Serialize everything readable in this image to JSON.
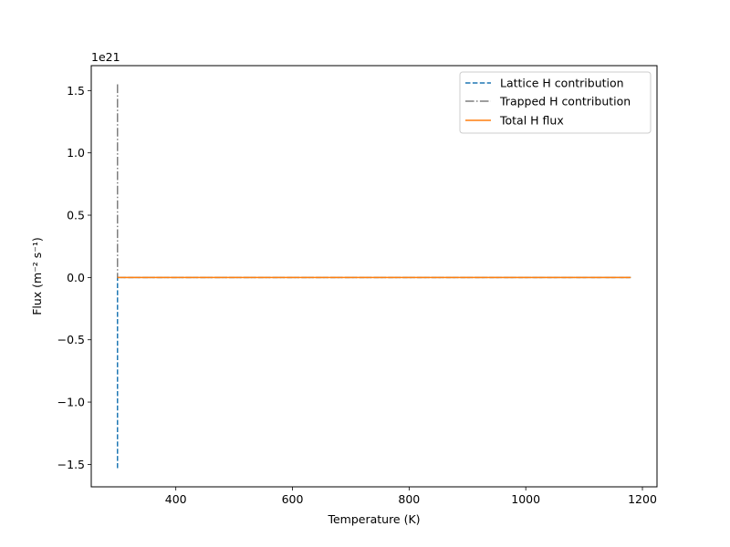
{
  "chart_data": {
    "type": "line",
    "xlabel": "Temperature (K)",
    "ylabel": "Flux (m⁻² s⁻¹)",
    "offset_label": "1e21",
    "xlim": [
      255,
      1225
    ],
    "ylim": [
      -1.68,
      1.7
    ],
    "y_scale": 1e+21,
    "xticks": [
      400,
      600,
      800,
      1000,
      1200
    ],
    "xtick_labels": [
      "400",
      "600",
      "800",
      "1000",
      "1200"
    ],
    "yticks": [
      -1.5,
      -1.0,
      -0.5,
      0.0,
      0.5,
      1.0,
      1.5
    ],
    "ytick_labels": [
      "−1.5",
      "−1.0",
      "−0.5",
      "0.0",
      "0.5",
      "1.0",
      "1.5"
    ],
    "grid": false,
    "legend_position": "top-right",
    "series": [
      {
        "name": "Lattice H contribution",
        "color": "#1f77b4",
        "linestyle": "dashed",
        "x": [
          300,
          300,
          301,
          1180
        ],
        "y": [
          -1.53,
          0.0,
          0.0,
          0.0
        ]
      },
      {
        "name": "Trapped H contribution",
        "color": "#7f7f7f",
        "linestyle": "dashdot",
        "x": [
          300,
          300,
          301,
          1180
        ],
        "y": [
          1.55,
          0.0,
          0.0,
          0.0
        ]
      },
      {
        "name": "Total H flux",
        "color": "#ff7f0e",
        "linestyle": "solid",
        "x": [
          300,
          1180
        ],
        "y": [
          0.0,
          0.0
        ]
      }
    ]
  }
}
